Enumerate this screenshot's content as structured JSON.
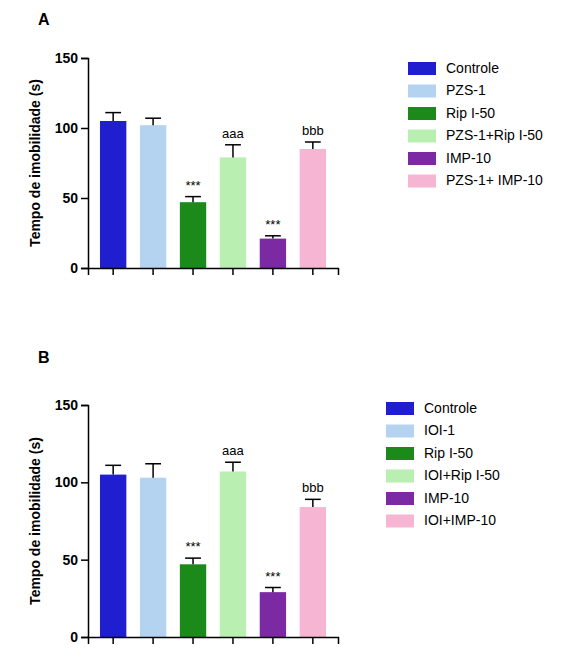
{
  "chart_data": [
    {
      "type": "bar",
      "title": "A",
      "y_label": "Tempo de imobilidade (s)",
      "categories": [
        "Controle",
        "PZS-1",
        "Rip I-50",
        "PZS-1+Rip I-50",
        "IMP-10",
        "PZS-1+ IMP-10"
      ],
      "values": [
        105,
        102,
        47,
        79,
        21,
        85
      ],
      "errors": [
        6,
        5,
        4,
        9,
        2,
        5
      ],
      "colors": [
        "#1f1fcf",
        "#b3d3f0",
        "#1b8a1b",
        "#b9efb1",
        "#7b2aa3",
        "#f6b5d3"
      ],
      "ylim": [
        0,
        150
      ],
      "yticks": [
        0,
        50,
        100,
        150
      ],
      "tick_labels": "y",
      "legend": "right",
      "annotations": [
        {
          "category": "Rip I-50",
          "text": "***"
        },
        {
          "category": "PZS-1+Rip I-50",
          "text": "aaa"
        },
        {
          "category": "IMP-10",
          "text": "***"
        },
        {
          "category": "PZS-1+ IMP-10",
          "text": "bbb"
        }
      ]
    },
    {
      "type": "bar",
      "title": "B",
      "y_label": "Tempo de imobilidade (s)",
      "categories": [
        "Controle",
        "IOI-1",
        "Rip I-50",
        "IOI+Rip I-50",
        "IMP-10",
        "IOI+IMP-10"
      ],
      "values": [
        105,
        103,
        47,
        107,
        29,
        84
      ],
      "errors": [
        6,
        9,
        4,
        6,
        3,
        5
      ],
      "colors": [
        "#1f1fcf",
        "#b3d3f0",
        "#1b8a1b",
        "#b9efb1",
        "#7b2aa3",
        "#f6b5d3"
      ],
      "ylim": [
        0,
        150
      ],
      "yticks": [
        0,
        50,
        100,
        150
      ],
      "tick_labels": "y",
      "legend": "right",
      "annotations": [
        {
          "category": "Rip I-50",
          "text": "***"
        },
        {
          "category": "IOI+Rip I-50",
          "text": "aaa"
        },
        {
          "category": "IMP-10",
          "text": "***"
        },
        {
          "category": "IOI+IMP-10",
          "text": "bbb"
        }
      ]
    }
  ]
}
